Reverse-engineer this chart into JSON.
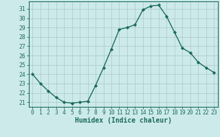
{
  "x": [
    0,
    1,
    2,
    3,
    4,
    5,
    6,
    7,
    8,
    9,
    10,
    11,
    12,
    13,
    14,
    15,
    16,
    17,
    18,
    19,
    20,
    21,
    22,
    23
  ],
  "y": [
    24.0,
    23.0,
    22.2,
    21.5,
    21.0,
    20.9,
    21.0,
    21.1,
    22.8,
    24.7,
    26.7,
    28.8,
    29.0,
    29.3,
    30.9,
    31.3,
    31.4,
    30.2,
    28.5,
    26.8,
    26.3,
    25.3,
    24.7,
    24.2
  ],
  "line_color": "#1a6b5a",
  "marker": "D",
  "marker_size": 2.2,
  "bg_color": "#cdeaea",
  "grid_color": "#b0cccc",
  "xlabel": "Humidex (Indice chaleur)",
  "ylim": [
    20.5,
    31.8
  ],
  "xlim": [
    -0.5,
    23.5
  ],
  "yticks": [
    21,
    22,
    23,
    24,
    25,
    26,
    27,
    28,
    29,
    30,
    31
  ],
  "xticks": [
    0,
    1,
    2,
    3,
    4,
    5,
    6,
    7,
    8,
    9,
    10,
    11,
    12,
    13,
    14,
    15,
    16,
    17,
    18,
    19,
    20,
    21,
    22,
    23
  ],
  "tick_color": "#1a6b5a",
  "tick_fontsize": 5.8,
  "xlabel_fontsize": 7.0,
  "spine_color": "#1a6b5a",
  "linewidth": 1.0
}
